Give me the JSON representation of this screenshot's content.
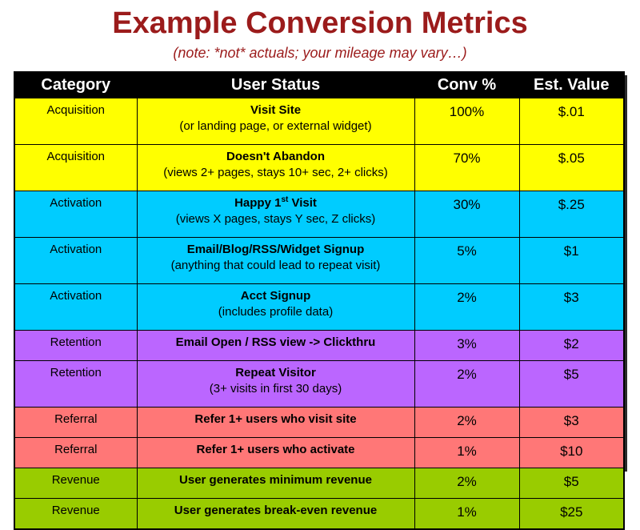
{
  "title": "Example Conversion Metrics",
  "subtitle": "(note: *not* actuals; your mileage may vary…)",
  "headers": {
    "category": "Category",
    "status": "User Status",
    "conv": "Conv %",
    "value": "Est. Value"
  },
  "colors": {
    "title": "#9b1b1b",
    "acquisition": "#ffff00",
    "activation": "#00ccff",
    "retention": "#bb66ff",
    "referral": "#ff7777",
    "revenue": "#99cc00"
  },
  "rows": [
    {
      "category": "Acquisition",
      "status": "Visit Site",
      "detail": "(or landing page, or external widget)",
      "conv": "100%",
      "value": "$.01"
    },
    {
      "category": "Acquisition",
      "status": "Doesn't Abandon",
      "detail": "(views 2+ pages, stays 10+ sec, 2+ clicks)",
      "conv": "70%",
      "value": "$.05"
    },
    {
      "category": "Activation",
      "status_pre": "Happy 1",
      "status_sup": "st",
      "status_post": " Visit",
      "detail": "(views X pages, stays Y sec, Z clicks)",
      "conv": "30%",
      "value": "$.25"
    },
    {
      "category": "Activation",
      "status": "Email/Blog/RSS/Widget Signup",
      "detail": "(anything that could lead to repeat visit)",
      "conv": "5%",
      "value": "$1"
    },
    {
      "category": "Activation",
      "status": "Acct Signup",
      "detail": "(includes profile data)",
      "conv": "2%",
      "value": "$3"
    },
    {
      "category": "Retention",
      "status": "Email Open / RSS view -> Clickthru",
      "conv": "3%",
      "value": "$2"
    },
    {
      "category": "Retention",
      "status": "Repeat Visitor",
      "detail": "(3+ visits in first 30 days)",
      "conv": "2%",
      "value": "$5"
    },
    {
      "category": "Referral",
      "status": "Refer 1+ users who visit site",
      "conv": "2%",
      "value": "$3"
    },
    {
      "category": "Referral",
      "status": "Refer 1+ users who activate",
      "conv": "1%",
      "value": "$10"
    },
    {
      "category": "Revenue",
      "status": "User generates minimum revenue",
      "conv": "2%",
      "value": "$5"
    },
    {
      "category": "Revenue",
      "status": "User generates break-even revenue",
      "conv": "1%",
      "value": "$25"
    }
  ]
}
